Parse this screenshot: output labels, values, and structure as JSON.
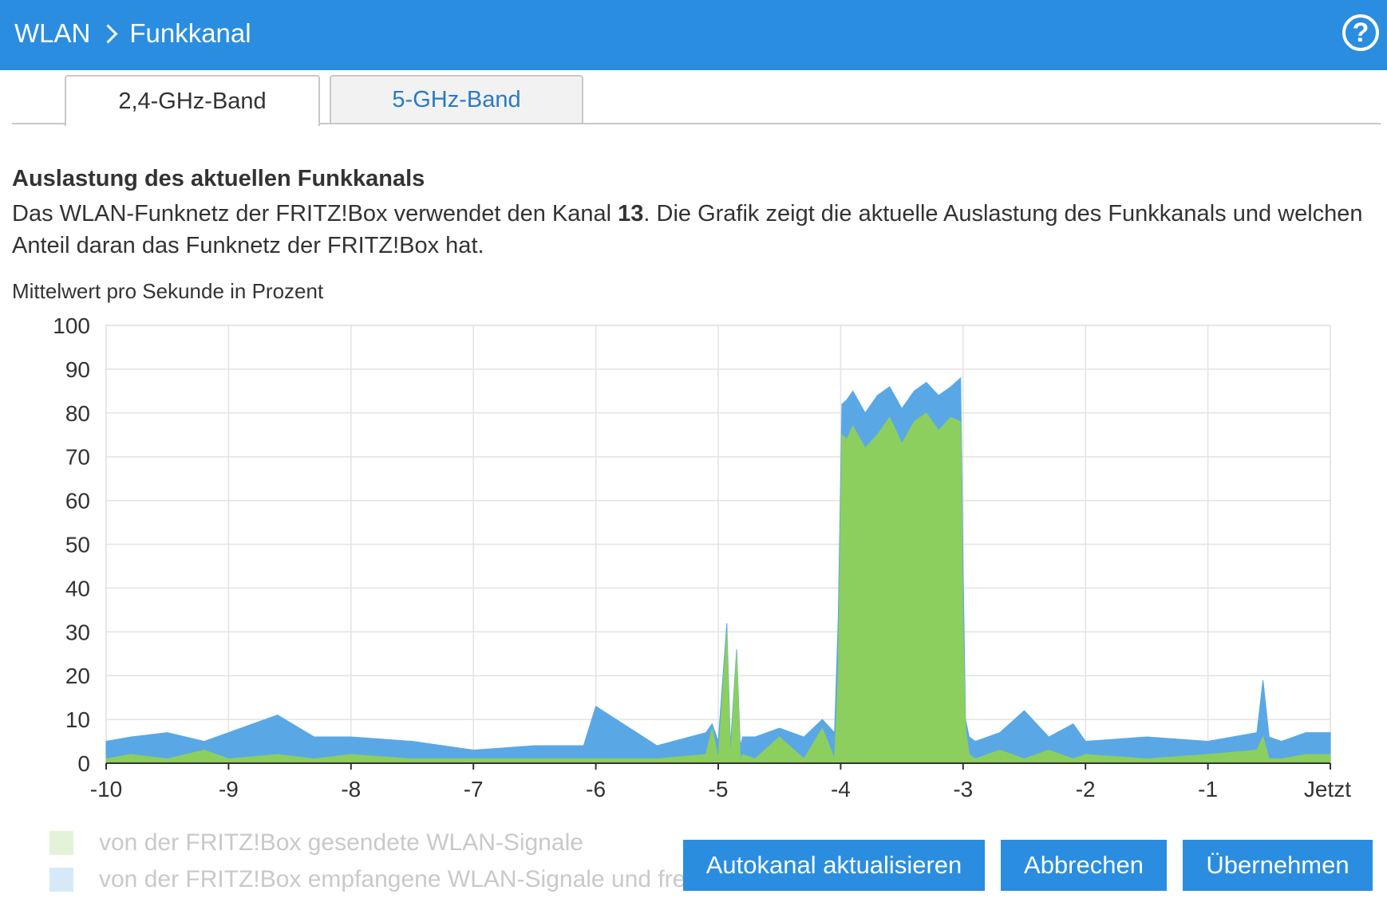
{
  "header": {
    "breadcrumb_root": "WLAN",
    "breadcrumb_current": "Funkkanal",
    "help_symbol": "?"
  },
  "tabs": [
    {
      "label": "2,4-GHz-Band",
      "active": true
    },
    {
      "label": "5-GHz-Band",
      "active": false
    }
  ],
  "section": {
    "heading": "Auslastung des aktuellen Funkkanals",
    "desc_part1": "Das WLAN-Funknetz der FRITZ!Box verwendet den Kanal ",
    "channel": "13",
    "desc_part2": ". Die Grafik zeigt die aktuelle Auslastung des Funkkanals und welchen Anteil daran das Funknetz der FRITZ!Box hat.",
    "unit_label": "Mittelwert pro Sekunde in Prozent"
  },
  "chart_data": {
    "type": "area",
    "ylim": [
      0,
      100
    ],
    "xlim": [
      -10,
      0
    ],
    "yticks": [
      "0",
      "10",
      "20",
      "30",
      "40",
      "50",
      "60",
      "70",
      "80",
      "90",
      "100"
    ],
    "xticks": [
      "-10",
      "-9",
      "-8",
      "-7",
      "-6",
      "-5",
      "-4",
      "-3",
      "-2",
      "-1",
      "Jetzt"
    ],
    "grid": true,
    "colors": {
      "sent": "#8ccf5f",
      "received": "#5aa7e6"
    },
    "series": [
      {
        "name": "von der FRITZ!Box gesendete WLAN-Signale",
        "x": [
          -10,
          -9.8,
          -9.5,
          -9.2,
          -9,
          -8.6,
          -8.3,
          -8,
          -7.5,
          -7,
          -6.5,
          -6.1,
          -6,
          -5.5,
          -5.1,
          -5.05,
          -5,
          -4.93,
          -4.9,
          -4.85,
          -4.82,
          -4.8,
          -4.7,
          -4.5,
          -4.3,
          -4.15,
          -4.05,
          -4.02,
          -3.99,
          -3.95,
          -3.9,
          -3.8,
          -3.7,
          -3.6,
          -3.5,
          -3.4,
          -3.3,
          -3.2,
          -3.1,
          -3.02,
          -3,
          -2.98,
          -2.95,
          -2.9,
          -2.7,
          -2.5,
          -2.3,
          -2.1,
          -2,
          -1.5,
          -1,
          -0.6,
          -0.55,
          -0.5,
          -0.4,
          -0.2,
          0
        ],
        "values": [
          1,
          2,
          1,
          3,
          1,
          2,
          1,
          2,
          1,
          1,
          1,
          1,
          1,
          1,
          2,
          8,
          1,
          30,
          1,
          25,
          1,
          2,
          1,
          6,
          1,
          8,
          1,
          20,
          75,
          74,
          77,
          72,
          75,
          79,
          73,
          78,
          80,
          76,
          79,
          78,
          30,
          8,
          2,
          1,
          3,
          1,
          3,
          1,
          2,
          1,
          2,
          3,
          6,
          1,
          1,
          2,
          2
        ]
      },
      {
        "name": "von der FRITZ!Box empfangene WLAN-Signale und fremde WLAN-Signale",
        "x": [
          -10,
          -9.8,
          -9.5,
          -9.2,
          -9,
          -8.6,
          -8.3,
          -8,
          -7.5,
          -7,
          -6.5,
          -6.1,
          -6,
          -5.5,
          -5.1,
          -5.05,
          -5,
          -4.93,
          -4.9,
          -4.85,
          -4.82,
          -4.8,
          -4.7,
          -4.5,
          -4.3,
          -4.15,
          -4.05,
          -4.02,
          -3.99,
          -3.95,
          -3.9,
          -3.8,
          -3.7,
          -3.6,
          -3.5,
          -3.4,
          -3.3,
          -3.2,
          -3.1,
          -3.02,
          -3,
          -2.98,
          -2.95,
          -2.9,
          -2.7,
          -2.5,
          -2.3,
          -2.1,
          -2,
          -1.5,
          -1,
          -0.6,
          -0.55,
          -0.5,
          -0.4,
          -0.2,
          0
        ],
        "values": [
          5,
          6,
          7,
          5,
          7,
          11,
          6,
          6,
          5,
          3,
          4,
          4,
          13,
          4,
          7,
          9,
          5,
          32,
          4,
          26,
          4,
          6,
          6,
          8,
          6,
          10,
          7,
          33,
          82,
          83,
          85,
          80,
          84,
          86,
          81,
          85,
          87,
          84,
          86,
          88,
          45,
          10,
          6,
          5,
          7,
          12,
          6,
          9,
          5,
          6,
          5,
          7,
          19,
          6,
          5,
          7,
          7
        ]
      }
    ]
  },
  "legend": [
    {
      "label": "von der FRITZ!Box gesendete WLAN-Signale"
    },
    {
      "label": "von der FRITZ!Box empfangene WLAN-Signale und frem"
    }
  ],
  "buttons": {
    "autokanal": "Autokanal aktualisieren",
    "cancel": "Abbrechen",
    "apply": "Übernehmen"
  }
}
